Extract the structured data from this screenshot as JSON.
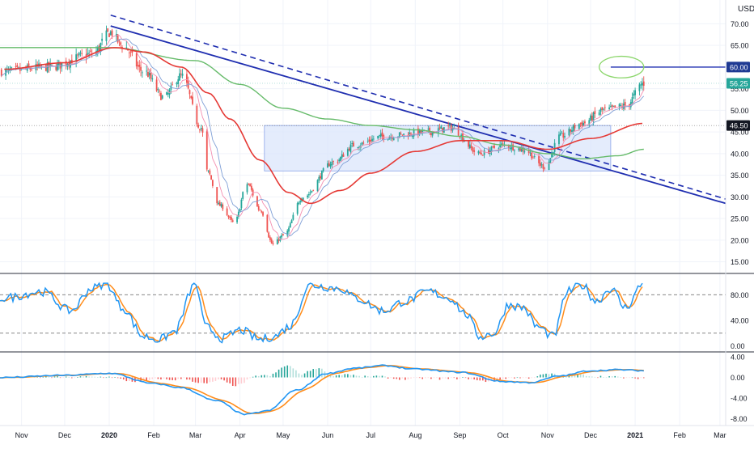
{
  "currency": "USD",
  "colors": {
    "up": "#26a69a",
    "down": "#ef5350",
    "trend_line": "#1f2eb0",
    "ma_red": "#e53935",
    "ma_green": "#66bb6a",
    "ma_blue_thin": "#7f9fd6",
    "ma_pink_thin": "#f48fb1",
    "rect_fill": "#dbe6fb",
    "stoch_k": "#2196f3",
    "stoch_d": "#ff8c1a",
    "macd": "#2196f3",
    "signal": "#ff8c1a",
    "ellipse": "#8bd66b",
    "badge_blue": "#1f3a93",
    "badge_teal": "#26a69a",
    "badge_black": "#131722"
  },
  "price_axis": {
    "ticks": [
      "70.00",
      "65.00",
      "55.00",
      "50.00",
      "45.00",
      "40.00",
      "35.00",
      "30.00",
      "25.00",
      "20.00",
      "15.00"
    ],
    "range": [
      12.5,
      75.5
    ]
  },
  "badges": [
    {
      "label": "60.00",
      "value": 60.0,
      "style": "blue"
    },
    {
      "label": "56.25",
      "value": 56.25,
      "style": "teal"
    },
    {
      "label": "46.50",
      "value": 46.5,
      "style": "black"
    }
  ],
  "stoch_axis": {
    "ticks": [
      "80.00",
      "40.00",
      "0.00"
    ],
    "range": [
      -8,
      112
    ],
    "levels": [
      80,
      20
    ]
  },
  "macd_axis": {
    "ticks": [
      "4.00",
      "0.00",
      "-4.00",
      "-8.00"
    ],
    "range": [
      -9.2,
      4.8
    ]
  },
  "time_axis": {
    "labels": [
      "Nov",
      "Dec",
      "2020",
      "Feb",
      "Mar",
      "Apr",
      "May",
      "Jun",
      "Jul",
      "Aug",
      "Sep",
      "Oct",
      "Nov",
      "Dec",
      "2021",
      "Feb",
      "Mar"
    ]
  },
  "chart_data": {
    "type": "candlestick",
    "symbol_currency": "USD",
    "x_range": [
      "2019-10-17",
      "2021-03-05"
    ],
    "y_range": [
      12.5,
      75.5
    ],
    "price_anchors": [
      [
        "2019-10-20",
        59
      ],
      [
        "2019-11-20",
        60
      ],
      [
        "2019-12-20",
        63
      ],
      [
        "2020-01-02",
        68
      ],
      [
        "2020-01-10",
        65
      ],
      [
        "2020-01-25",
        59
      ],
      [
        "2020-02-08",
        53
      ],
      [
        "2020-02-20",
        58
      ],
      [
        "2020-03-05",
        46
      ],
      [
        "2020-03-09",
        36
      ],
      [
        "2020-03-18",
        28
      ],
      [
        "2020-03-28",
        24
      ],
      [
        "2020-04-06",
        33
      ],
      [
        "2020-04-15",
        27
      ],
      [
        "2020-04-24",
        19
      ],
      [
        "2020-05-01",
        21
      ],
      [
        "2020-05-15",
        30
      ],
      [
        "2020-06-05",
        38
      ],
      [
        "2020-06-20",
        42
      ],
      [
        "2020-07-10",
        44
      ],
      [
        "2020-08-10",
        45
      ],
      [
        "2020-08-25",
        46
      ],
      [
        "2020-09-15",
        40
      ],
      [
        "2020-10-01",
        42
      ],
      [
        "2020-10-15",
        41
      ],
      [
        "2020-10-30",
        37
      ],
      [
        "2020-11-10",
        44
      ],
      [
        "2020-11-25",
        47
      ],
      [
        "2020-12-10",
        50
      ],
      [
        "2020-12-25",
        51
      ],
      [
        "2021-01-07",
        56.25
      ]
    ],
    "ma_red_anchors": [
      [
        "2019-10-20",
        59.5
      ],
      [
        "2019-12-01",
        61
      ],
      [
        "2020-01-05",
        64.5
      ],
      [
        "2020-01-25",
        63.5
      ],
      [
        "2020-02-20",
        60
      ],
      [
        "2020-03-10",
        54
      ],
      [
        "2020-03-25",
        48
      ],
      [
        "2020-04-15",
        38.5
      ],
      [
        "2020-05-05",
        31
      ],
      [
        "2020-05-20",
        28.5
      ],
      [
        "2020-06-10",
        31.5
      ],
      [
        "2020-07-01",
        35.5
      ],
      [
        "2020-08-01",
        40.5
      ],
      [
        "2020-09-01",
        43
      ],
      [
        "2020-10-01",
        43
      ],
      [
        "2020-11-01",
        41
      ],
      [
        "2020-12-01",
        43.5
      ],
      [
        "2021-01-07",
        47
      ]
    ],
    "ma_green_anchors": [
      [
        "2019-10-17",
        64.5
      ],
      [
        "2020-01-01",
        64.5
      ],
      [
        "2020-03-01",
        61.5
      ],
      [
        "2020-04-01",
        56
      ],
      [
        "2020-05-01",
        50.5
      ],
      [
        "2020-06-01",
        48
      ],
      [
        "2020-07-01",
        46.5
      ],
      [
        "2020-08-01",
        45.5
      ],
      [
        "2020-09-01",
        44
      ],
      [
        "2020-10-01",
        42
      ],
      [
        "2020-11-01",
        40
      ],
      [
        "2020-11-25",
        38.8
      ],
      [
        "2020-12-20",
        39.5
      ],
      [
        "2021-01-07",
        41
      ]
    ],
    "trend_solid": [
      [
        "2020-01-02",
        69.5
      ],
      [
        "2021-03-05",
        28.5
      ]
    ],
    "trend_dashed": [
      [
        "2020-01-02",
        72
      ],
      [
        "2021-03-05",
        29.5
      ]
    ],
    "horizontal_line": {
      "start": "2020-12-15",
      "value": 60.0
    },
    "box": {
      "x": [
        "2020-04-18",
        "2020-12-15"
      ],
      "y": [
        36,
        46.5
      ]
    },
    "ellipse": {
      "x": [
        "2020-12-07",
        "2021-01-07"
      ],
      "y": [
        57.5,
        62.5
      ]
    },
    "stoch_anchors": [
      [
        "2019-10-20",
        75
      ],
      [
        "2019-11-15",
        85
      ],
      [
        "2019-12-05",
        55
      ],
      [
        "2019-12-20",
        90
      ],
      [
        "2019-12-30",
        98
      ],
      [
        "2020-01-10",
        60
      ],
      [
        "2020-01-25",
        15
      ],
      [
        "2020-02-05",
        10
      ],
      [
        "2020-02-15",
        22
      ],
      [
        "2020-03-01",
        97
      ],
      [
        "2020-03-08",
        30
      ],
      [
        "2020-03-20",
        12
      ],
      [
        "2020-04-01",
        25
      ],
      [
        "2020-04-15",
        10
      ],
      [
        "2020-04-25",
        15
      ],
      [
        "2020-05-05",
        30
      ],
      [
        "2020-05-20",
        95
      ],
      [
        "2020-06-10",
        90
      ],
      [
        "2020-06-20",
        75
      ],
      [
        "2020-07-10",
        55
      ],
      [
        "2020-07-25",
        70
      ],
      [
        "2020-08-10",
        85
      ],
      [
        "2020-08-25",
        75
      ],
      [
        "2020-09-05",
        50
      ],
      [
        "2020-09-15",
        15
      ],
      [
        "2020-09-25",
        20
      ],
      [
        "2020-10-05",
        65
      ],
      [
        "2020-10-15",
        60
      ],
      [
        "2020-10-25",
        30
      ],
      [
        "2020-11-05",
        15
      ],
      [
        "2020-11-15",
        85
      ],
      [
        "2020-11-25",
        95
      ],
      [
        "2020-12-05",
        70
      ],
      [
        "2020-12-15",
        90
      ],
      [
        "2020-12-25",
        60
      ],
      [
        "2021-01-07",
        98
      ]
    ],
    "macd_anchors": [
      [
        "2019-10-20",
        0.0
      ],
      [
        "2019-12-01",
        0.4
      ],
      [
        "2020-01-01",
        0.8
      ],
      [
        "2020-02-01",
        -1.2
      ],
      [
        "2020-02-20",
        -2.0
      ],
      [
        "2020-03-15",
        -4.5
      ],
      [
        "2020-04-05",
        -7.2
      ],
      [
        "2020-04-20",
        -6.5
      ],
      [
        "2020-05-10",
        -2.5
      ],
      [
        "2020-06-01",
        0.8
      ],
      [
        "2020-06-20",
        1.8
      ],
      [
        "2020-07-10",
        2.3
      ],
      [
        "2020-08-01",
        1.6
      ],
      [
        "2020-09-01",
        1.0
      ],
      [
        "2020-10-01",
        -0.8
      ],
      [
        "2020-10-20",
        -1.0
      ],
      [
        "2020-11-10",
        0.3
      ],
      [
        "2020-12-01",
        1.3
      ],
      [
        "2020-12-20",
        1.5
      ],
      [
        "2021-01-07",
        1.3
      ]
    ]
  }
}
